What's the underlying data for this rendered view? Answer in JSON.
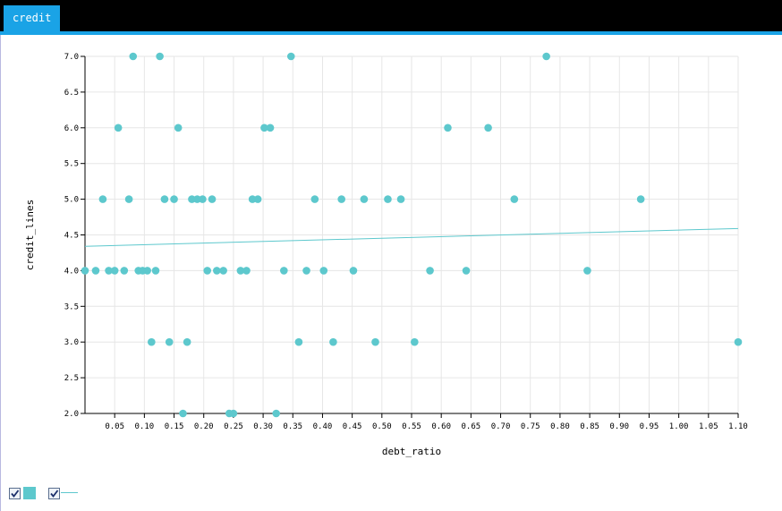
{
  "tab": {
    "label": "credit"
  },
  "colors": {
    "accent": "#1aa3e6",
    "point": "#5dc8cd",
    "trend": "#5dc8cd",
    "grid": "#e6e6e6"
  },
  "legend": [
    {
      "kind": "points",
      "checked": true,
      "icon": "checkbox-checked-icon"
    },
    {
      "kind": "trendline",
      "checked": true,
      "icon": "checkbox-checked-icon"
    }
  ],
  "chart_data": {
    "type": "scatter",
    "xlabel": "debt_ratio",
    "ylabel": "credit_lines",
    "xlim": [
      0,
      1.1
    ],
    "ylim": [
      2.0,
      7.0
    ],
    "xticks": [
      "0.05",
      "0.10",
      "0.15",
      "0.20",
      "0.25",
      "0.30",
      "0.35",
      "0.40",
      "0.45",
      "0.50",
      "0.55",
      "0.60",
      "0.65",
      "0.70",
      "0.75",
      "0.80",
      "0.85",
      "0.90",
      "0.95",
      "1.00",
      "1.05",
      "1.10"
    ],
    "yticks": [
      "2.0",
      "2.5",
      "3.0",
      "3.5",
      "4.0",
      "4.5",
      "5.0",
      "5.5",
      "6.0",
      "6.5",
      "7.0"
    ],
    "grid": true,
    "points": [
      [
        0.0,
        4
      ],
      [
        0.018,
        4
      ],
      [
        0.03,
        5
      ],
      [
        0.04,
        4
      ],
      [
        0.05,
        4
      ],
      [
        0.056,
        6
      ],
      [
        0.066,
        4
      ],
      [
        0.074,
        5
      ],
      [
        0.081,
        7
      ],
      [
        0.09,
        4
      ],
      [
        0.097,
        4
      ],
      [
        0.105,
        4
      ],
      [
        0.112,
        3
      ],
      [
        0.119,
        4
      ],
      [
        0.126,
        7
      ],
      [
        0.134,
        5
      ],
      [
        0.142,
        3
      ],
      [
        0.15,
        5
      ],
      [
        0.157,
        6
      ],
      [
        0.165,
        2
      ],
      [
        0.172,
        3
      ],
      [
        0.18,
        5
      ],
      [
        0.189,
        5
      ],
      [
        0.198,
        5
      ],
      [
        0.206,
        4
      ],
      [
        0.214,
        5
      ],
      [
        0.222,
        4
      ],
      [
        0.233,
        4
      ],
      [
        0.243,
        2
      ],
      [
        0.25,
        2
      ],
      [
        0.262,
        4
      ],
      [
        0.272,
        4
      ],
      [
        0.282,
        5
      ],
      [
        0.291,
        5
      ],
      [
        0.302,
        6
      ],
      [
        0.312,
        6
      ],
      [
        0.322,
        2
      ],
      [
        0.335,
        4
      ],
      [
        0.347,
        7
      ],
      [
        0.36,
        3
      ],
      [
        0.373,
        4
      ],
      [
        0.387,
        5
      ],
      [
        0.402,
        4
      ],
      [
        0.418,
        3
      ],
      [
        0.432,
        5
      ],
      [
        0.452,
        4
      ],
      [
        0.47,
        5
      ],
      [
        0.489,
        3
      ],
      [
        0.51,
        5
      ],
      [
        0.532,
        5
      ],
      [
        0.555,
        3
      ],
      [
        0.581,
        4
      ],
      [
        0.611,
        6
      ],
      [
        0.642,
        4
      ],
      [
        0.679,
        6
      ],
      [
        0.723,
        5
      ],
      [
        0.777,
        7
      ],
      [
        0.846,
        4
      ],
      [
        0.936,
        5
      ],
      [
        1.1,
        3
      ]
    ],
    "trendline": {
      "x": [
        0,
        1.1
      ],
      "y": [
        4.34,
        4.59
      ]
    }
  }
}
